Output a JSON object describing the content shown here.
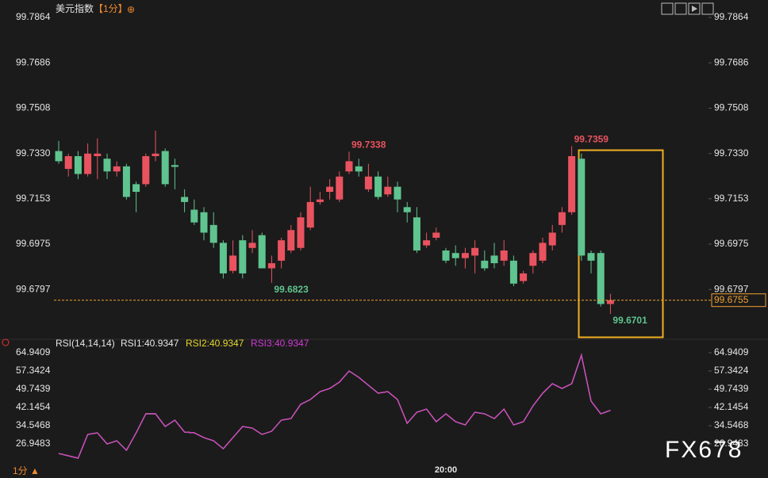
{
  "header": {
    "title": "美元指数",
    "period": "【1分】",
    "icon": "⊕"
  },
  "footer": {
    "period": "1分 ▲",
    "watermark": "FX678"
  },
  "chart_data": [
    {
      "type": "candlestick",
      "categories": [
        null,
        null,
        null,
        null,
        null,
        null,
        null,
        null,
        null,
        null,
        null,
        null,
        null,
        null,
        null,
        null,
        null,
        null,
        null,
        null,
        null,
        null,
        null,
        null,
        null,
        null,
        null,
        null,
        null,
        null,
        null,
        null,
        null,
        null,
        null,
        null,
        null,
        null,
        null,
        null,
        "20:00",
        null,
        null,
        null,
        null,
        null,
        null,
        null,
        null,
        null,
        null,
        null,
        null,
        null,
        null,
        null,
        null,
        null
      ],
      "open": [
        99.734,
        99.727,
        99.732,
        99.725,
        99.732,
        99.731,
        99.726,
        99.728,
        99.721,
        99.721,
        99.732,
        99.734,
        99.7285,
        99.716,
        99.711,
        99.71,
        99.705,
        99.698,
        99.687,
        99.699,
        99.696,
        99.701,
        99.688,
        99.691,
        99.695,
        99.696,
        99.704,
        99.714,
        99.718,
        99.715,
        99.726,
        99.728,
        99.719,
        99.724,
        99.717,
        99.72,
        99.712,
        99.708,
        99.697,
        99.7,
        99.695,
        99.694,
        99.692,
        99.693,
        99.691,
        99.693,
        99.691,
        99.691,
        99.683,
        99.689,
        99.691,
        99.697,
        99.705,
        99.71,
        99.731,
        99.694,
        99.694,
        99.674
      ],
      "high": [
        99.738,
        99.733,
        99.734,
        99.737,
        99.739,
        99.733,
        99.73,
        99.729,
        99.722,
        99.733,
        99.742,
        99.735,
        99.731,
        99.719,
        99.715,
        99.712,
        99.71,
        99.699,
        99.699,
        99.701,
        99.703,
        99.702,
        99.693,
        99.7,
        99.705,
        99.71,
        99.72,
        99.718,
        99.723,
        99.726,
        99.7338,
        99.731,
        99.729,
        99.726,
        99.724,
        99.722,
        99.714,
        99.712,
        99.702,
        99.704,
        99.696,
        99.697,
        99.696,
        99.699,
        99.695,
        99.698,
        99.699,
        99.693,
        99.687,
        99.695,
        99.7,
        99.705,
        99.712,
        99.7359,
        99.733,
        99.695,
        99.695,
        99.678
      ],
      "low": [
        99.729,
        99.724,
        99.723,
        99.724,
        99.723,
        99.723,
        99.724,
        99.715,
        99.71,
        99.72,
        99.73,
        99.72,
        99.719,
        99.71,
        99.705,
        99.699,
        99.696,
        99.684,
        99.686,
        99.684,
        99.694,
        99.688,
        99.6823,
        99.688,
        99.694,
        99.695,
        99.703,
        99.713,
        99.715,
        99.714,
        99.725,
        99.724,
        99.718,
        99.715,
        99.716,
        99.71,
        99.706,
        99.694,
        99.696,
        99.699,
        99.69,
        99.689,
        99.688,
        99.686,
        99.687,
        99.688,
        99.689,
        99.681,
        99.682,
        99.686,
        99.69,
        99.695,
        99.702,
        99.709,
        99.691,
        99.686,
        99.673,
        99.6701
      ],
      "close": [
        99.73,
        99.732,
        99.725,
        99.733,
        99.733,
        99.726,
        99.728,
        99.716,
        99.718,
        99.732,
        99.733,
        99.721,
        99.7278,
        99.714,
        99.706,
        99.702,
        99.698,
        99.686,
        99.693,
        99.686,
        99.698,
        99.688,
        99.69,
        99.699,
        99.703,
        99.708,
        99.714,
        99.715,
        99.72,
        99.724,
        99.73,
        99.726,
        99.724,
        99.716,
        99.72,
        99.715,
        99.71,
        99.695,
        99.699,
        99.702,
        99.691,
        99.692,
        99.694,
        99.696,
        99.688,
        99.69,
        99.695,
        99.682,
        99.686,
        99.694,
        99.698,
        99.702,
        99.71,
        99.732,
        99.693,
        99.691,
        99.674,
        99.6755
      ],
      "up_color": "#e9535f",
      "down_color": "#5fc48f",
      "ylim": [
        99.6611,
        99.7917
      ],
      "yticks": [
        99.7864,
        99.7686,
        99.7508,
        {
          "value": 99.733,
          "label": "99.7330"
        },
        99.7153,
        99.6975,
        99.6797
      ],
      "high_labels": [
        99.7338,
        99.7359
      ],
      "low_labels": [
        99.6823,
        99.6701
      ],
      "last_price": 99.6755,
      "last_color": "#f0a030"
    },
    {
      "type": "line",
      "indicator": "RSI(14,14,14)",
      "series": [
        {
          "name": "RSI1:40.9347",
          "color": "#ffffff",
          "values": [
            22.98,
            21.99,
            21.0,
            30.91,
            31.57,
            26.94,
            28.27,
            24.3,
            31.57,
            39.5,
            39.5,
            34.21,
            36.86,
            31.9,
            31.57,
            29.59,
            28.27,
            24.96,
            29.59,
            34.21,
            33.55,
            30.91,
            32.23,
            36.86,
            37.52,
            43.46,
            45.45,
            48.75,
            50.07,
            52.72,
            57.34,
            54.7,
            51.39,
            48.09,
            48.75,
            45.45,
            35.53,
            40.16,
            41.48,
            36.2,
            39.5,
            36.2,
            34.87,
            40.16,
            39.5,
            37.52,
            41.48,
            34.87,
            36.2,
            42.8,
            48.09,
            52.05,
            50.07,
            52.05,
            63.95,
            44.79,
            39.5,
            40.9347
          ]
        },
        {
          "name": "RSI2:40.9347",
          "color": "#e8d630",
          "values": [
            22.98,
            21.99,
            21.0,
            30.91,
            31.57,
            26.94,
            28.27,
            24.3,
            31.57,
            39.5,
            39.5,
            34.21,
            36.86,
            31.9,
            31.57,
            29.59,
            28.27,
            24.96,
            29.59,
            34.21,
            33.55,
            30.91,
            32.23,
            36.86,
            37.52,
            43.46,
            45.45,
            48.75,
            50.07,
            52.72,
            57.34,
            54.7,
            51.39,
            48.09,
            48.75,
            45.45,
            35.53,
            40.16,
            41.48,
            36.2,
            39.5,
            36.2,
            34.87,
            40.16,
            39.5,
            37.52,
            41.48,
            34.87,
            36.2,
            42.8,
            48.09,
            52.05,
            50.07,
            52.05,
            63.95,
            44.79,
            39.5,
            40.9347
          ]
        },
        {
          "name": "RSI3:40.9347",
          "color": "#d03ad6",
          "values": [
            22.98,
            21.99,
            21.0,
            30.91,
            31.57,
            26.94,
            28.27,
            24.3,
            31.57,
            39.5,
            39.5,
            34.21,
            36.86,
            31.9,
            31.57,
            29.59,
            28.27,
            24.96,
            29.59,
            34.21,
            33.55,
            30.91,
            32.23,
            36.86,
            37.52,
            43.46,
            45.45,
            48.75,
            50.07,
            52.72,
            57.34,
            54.7,
            51.39,
            48.09,
            48.75,
            45.45,
            35.53,
            40.16,
            41.48,
            36.2,
            39.5,
            36.2,
            34.87,
            40.16,
            39.5,
            37.52,
            41.48,
            34.87,
            36.2,
            42.8,
            48.09,
            52.05,
            50.07,
            52.05,
            63.95,
            44.79,
            39.5,
            40.9347
          ]
        }
      ],
      "ylim": [
        17.04,
        69.9
      ],
      "yticks": [
        64.9409,
        57.3424,
        49.7439,
        42.1454,
        34.5468,
        26.9483
      ]
    }
  ]
}
